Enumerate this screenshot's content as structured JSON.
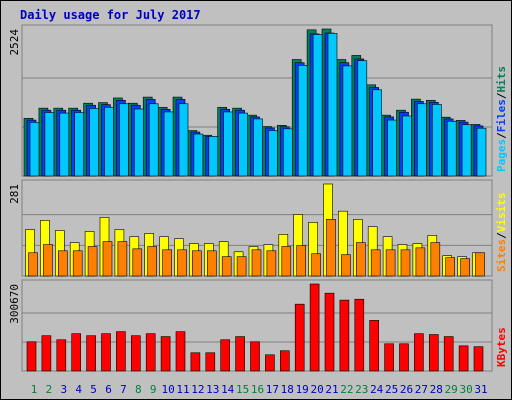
{
  "chart_data": [
    {
      "type": "bar",
      "title": "Daily usage for July 2017",
      "ylim": [
        0,
        2524
      ],
      "yticks": [
        2524
      ],
      "grid_divisions": 3,
      "legend_separator": "/",
      "series": [
        {
          "name": "Hits",
          "color": "#00805c",
          "values": [
            990,
            1165,
            1165,
            1165,
            1250,
            1260,
            1340,
            1250,
            1355,
            1180,
            1355,
            780,
            700,
            1180,
            1165,
            1045,
            850,
            870,
            2000,
            2510,
            2524,
            2000,
            2070,
            1565,
            1045,
            1130,
            1320,
            1300,
            1010,
            955,
            885
          ]
        },
        {
          "name": "Files",
          "color": "#0040ff",
          "values": [
            960,
            1130,
            1130,
            1130,
            1215,
            1225,
            1300,
            1215,
            1315,
            1145,
            1315,
            755,
            680,
            1145,
            1130,
            1015,
            825,
            845,
            1945,
            2440,
            2455,
            1945,
            2010,
            1520,
            1015,
            1095,
            1280,
            1265,
            980,
            925,
            860
          ]
        },
        {
          "name": "Pages",
          "color": "#00c8ff",
          "values": [
            920,
            1090,
            1080,
            1090,
            1160,
            1180,
            1240,
            1150,
            1240,
            1100,
            1240,
            720,
            680,
            1100,
            1080,
            980,
            780,
            810,
            1900,
            2430,
            2450,
            1890,
            1980,
            1480,
            960,
            1030,
            1240,
            1230,
            940,
            880,
            820
          ]
        }
      ]
    },
    {
      "type": "bar",
      "ylim": [
        0,
        281
      ],
      "yticks": [
        281
      ],
      "grid_divisions": 3,
      "legend_separator": "/",
      "series": [
        {
          "name": "Visits",
          "color": "#ffff00",
          "values": [
            142,
            170,
            139,
            102,
            136,
            179,
            142,
            120,
            130,
            120,
            114,
            99,
            99,
            105,
            74,
            90,
            96,
            127,
            188,
            164,
            281,
            198,
            173,
            151,
            120,
            96,
            99,
            124,
            62,
            59,
            71
          ]
        },
        {
          "name": "Sites",
          "color": "#ff8000",
          "values": [
            71,
            96,
            77,
            77,
            90,
            105,
            105,
            83,
            90,
            80,
            80,
            77,
            77,
            59,
            59,
            80,
            77,
            90,
            93,
            68,
            173,
            65,
            102,
            80,
            80,
            80,
            86,
            102,
            56,
            53,
            71
          ]
        }
      ]
    },
    {
      "type": "bar",
      "ylim": [
        0,
        300670
      ],
      "yticks": [
        300670
      ],
      "grid_divisions": 3,
      "categories": [
        "1",
        "2",
        "3",
        "4",
        "5",
        "6",
        "7",
        "8",
        "9",
        "10",
        "11",
        "12",
        "13",
        "14",
        "15",
        "16",
        "17",
        "18",
        "19",
        "20",
        "21",
        "22",
        "23",
        "24",
        "25",
        "26",
        "27",
        "28",
        "29",
        "30",
        "31"
      ],
      "category_colors": [
        "#008040",
        "#008040",
        "#0000c0",
        "#0000c0",
        "#0000c0",
        "#0000c0",
        "#0000c0",
        "#008040",
        "#008040",
        "#0000c0",
        "#0000c0",
        "#0000c0",
        "#0000c0",
        "#0000c0",
        "#008040",
        "#008040",
        "#0000c0",
        "#0000c0",
        "#0000c0",
        "#0000c0",
        "#0000c0",
        "#008040",
        "#008040",
        "#0000c0",
        "#0000c0",
        "#0000c0",
        "#0000c0",
        "#0000c0",
        "#008040",
        "#008040",
        "#0000c0"
      ],
      "series": [
        {
          "name": "KBytes",
          "color": "#ff0000",
          "values": [
            101000,
            122000,
            108000,
            129000,
            122000,
            129000,
            136000,
            122000,
            129000,
            119000,
            136000,
            63000,
            63000,
            108000,
            119000,
            101000,
            56000,
            70000,
            231000,
            300670,
            269000,
            245000,
            248000,
            175000,
            94000,
            94000,
            129000,
            126000,
            119000,
            87000,
            84000
          ]
        }
      ]
    }
  ]
}
